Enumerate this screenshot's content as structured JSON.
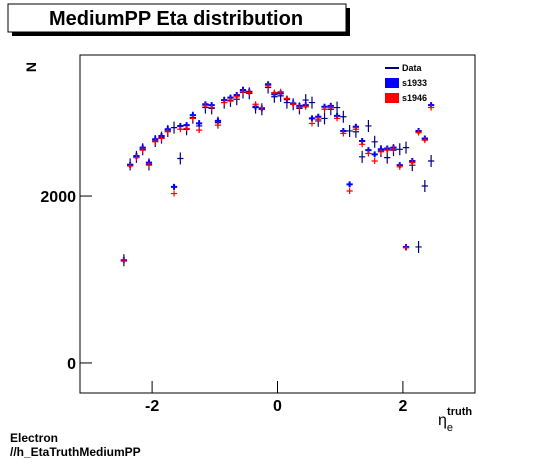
{
  "chart_data": {
    "type": "scatter",
    "title": "MediumPP Eta distribution",
    "y_label": "N",
    "x_label": "η",
    "x_label_sub": "e",
    "x_label_sup": "truth",
    "footer": [
      "Electron",
      "//h_EtaTruthMediumPP"
    ],
    "x": [
      -2.45,
      -2.35,
      -2.25,
      -2.15,
      -2.05,
      -1.95,
      -1.85,
      -1.75,
      -1.65,
      -1.55,
      -1.45,
      -1.35,
      -1.25,
      -1.15,
      -1.05,
      -0.95,
      -0.85,
      -0.75,
      -0.65,
      -0.55,
      -0.45,
      -0.35,
      -0.25,
      -0.15,
      -0.05,
      0.05,
      0.15,
      0.25,
      0.35,
      0.45,
      0.55,
      0.65,
      0.75,
      0.85,
      0.95,
      1.05,
      1.15,
      1.25,
      1.35,
      1.45,
      1.55,
      1.65,
      1.75,
      1.85,
      1.95,
      2.05,
      2.15,
      2.25,
      2.35,
      2.45
    ],
    "series": [
      {
        "name": "Data",
        "color": "#000080",
        "values": [
          1230,
          2380,
          2470,
          2560,
          2380,
          2660,
          2700,
          2780,
          2820,
          2450,
          2800,
          2940,
          2840,
          3060,
          3050,
          2880,
          3120,
          3140,
          3160,
          3240,
          3230,
          3060,
          3040,
          3300,
          3190,
          3200,
          3120,
          3100,
          3050,
          3150,
          3120,
          2900,
          2930,
          3040,
          3060,
          2950,
          2780,
          2770,
          2470,
          2840,
          2650,
          2540,
          2460,
          2550,
          2560,
          2580,
          2370,
          1390,
          2120,
          2420
        ]
      },
      {
        "name": "s1933",
        "color": "#0000ff",
        "values": [
          1230,
          2370,
          2480,
          2580,
          2400,
          2680,
          2720,
          2800,
          2110,
          2840,
          2850,
          2970,
          2870,
          3100,
          3090,
          2900,
          3150,
          3180,
          3210,
          3270,
          3250,
          3070,
          3050,
          3340,
          3220,
          3230,
          3160,
          3110,
          3080,
          3090,
          2930,
          2950,
          3070,
          3080,
          2960,
          2780,
          2140,
          2830,
          2660,
          2550,
          2500,
          2560,
          2570,
          2580,
          2370,
          1390,
          2420,
          2780,
          2690,
          3090
        ]
      },
      {
        "name": "s1946",
        "color": "#ff0000",
        "values": [
          1220,
          2360,
          2460,
          2550,
          2370,
          2650,
          2690,
          2770,
          2030,
          2800,
          2810,
          2930,
          2790,
          3080,
          3060,
          2850,
          3120,
          3150,
          3190,
          3250,
          3240,
          3100,
          3060,
          3320,
          3240,
          3250,
          3170,
          3100,
          3060,
          3070,
          2870,
          2920,
          3040,
          3060,
          2930,
          2750,
          2060,
          2800,
          2620,
          2510,
          2420,
          2530,
          2550,
          2560,
          2350,
          1380,
          2400,
          2760,
          2670,
          3060
        ]
      }
    ],
    "xlim": [
      -3.15,
      3.15
    ],
    "ylim": [
      -360,
      3690
    ],
    "xticks": [
      -2,
      0,
      2
    ],
    "yticks": [
      0,
      2000
    ],
    "legend": "top-right"
  }
}
